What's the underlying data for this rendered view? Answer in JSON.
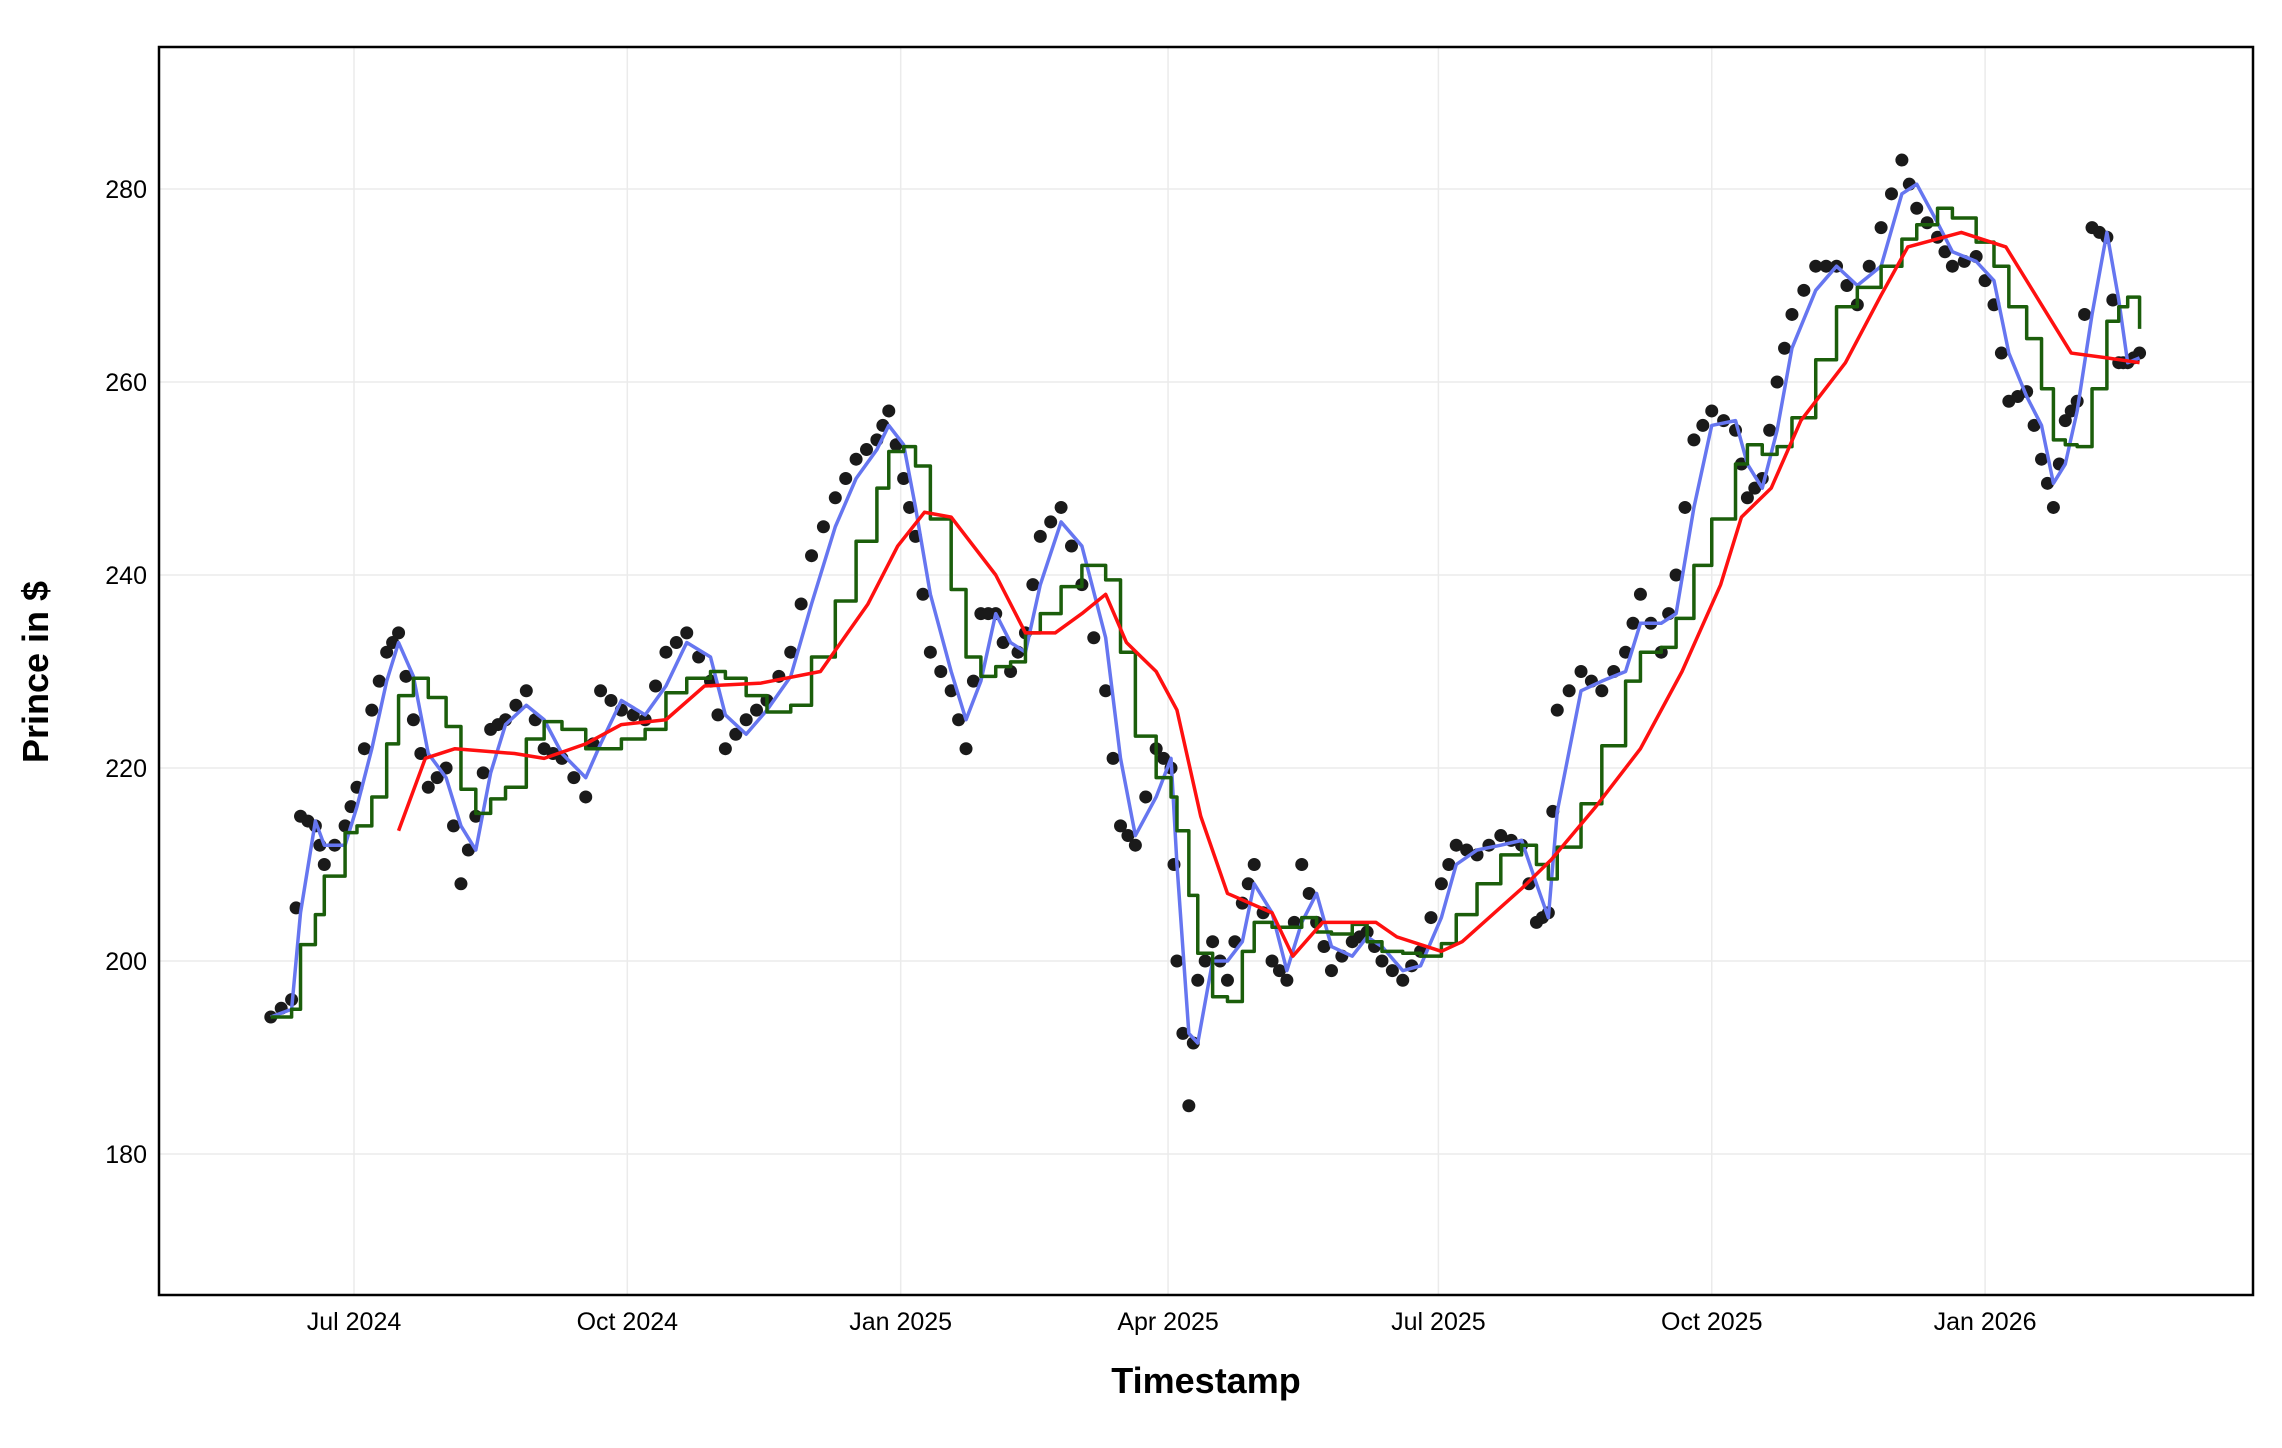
{
  "chart_data": {
    "type": "line",
    "title": "",
    "xlabel": "Timestamp",
    "ylabel": "Prince in $",
    "ylim": [
      165,
      293
    ],
    "xlim": [
      "2024-05-10",
      "2026-03-24"
    ],
    "grid": true,
    "legend": "none",
    "x_ticks": [
      {
        "date": "2024-07-01",
        "label": "Jul 2024"
      },
      {
        "date": "2024-10-01",
        "label": "Oct 2024"
      },
      {
        "date": "2025-01-01",
        "label": "Jan 2025"
      },
      {
        "date": "2025-04-01",
        "label": "Apr 2025"
      },
      {
        "date": "2025-07-01",
        "label": "Jul 2025"
      },
      {
        "date": "2025-10-01",
        "label": "Oct 2025"
      },
      {
        "date": "2026-01-01",
        "label": "Jan 2026"
      }
    ],
    "y_ticks": [
      180,
      200,
      220,
      240,
      260,
      280
    ],
    "colors": {
      "price": "#1a1a1a",
      "blue": "#6676f0",
      "green": "#1b5e0b",
      "red": "#ff1010",
      "grid": "#ebebeb"
    },
    "x": [
      "2024-06-03",
      "2024-06-10",
      "2024-06-13",
      "2024-06-18",
      "2024-06-21",
      "2024-06-28",
      "2024-07-02",
      "2024-07-07",
      "2024-07-12",
      "2024-07-16",
      "2024-07-21",
      "2024-07-26",
      "2024-08-01",
      "2024-08-06",
      "2024-08-11",
      "2024-08-16",
      "2024-08-21",
      "2024-08-28",
      "2024-09-03",
      "2024-09-09",
      "2024-09-17",
      "2024-09-22",
      "2024-09-29",
      "2024-10-07",
      "2024-10-14",
      "2024-10-21",
      "2024-10-29",
      "2024-11-03",
      "2024-11-10",
      "2024-11-17",
      "2024-11-25",
      "2024-12-02",
      "2024-12-10",
      "2024-12-17",
      "2024-12-24",
      "2024-12-28",
      "2025-01-02",
      "2025-01-06",
      "2025-01-11",
      "2025-01-18",
      "2025-01-23",
      "2025-01-28",
      "2025-02-02",
      "2025-02-07",
      "2025-02-12",
      "2025-02-17",
      "2025-02-24",
      "2025-03-03",
      "2025-03-11",
      "2025-03-16",
      "2025-03-21",
      "2025-03-28",
      "2025-04-02",
      "2025-04-04",
      "2025-04-08",
      "2025-04-11",
      "2025-04-16",
      "2025-04-21",
      "2025-04-26",
      "2025-04-30",
      "2025-05-06",
      "2025-05-11",
      "2025-05-16",
      "2025-05-21",
      "2025-05-26",
      "2025-06-02",
      "2025-06-07",
      "2025-06-12",
      "2025-06-19",
      "2025-06-25",
      "2025-07-02",
      "2025-07-07",
      "2025-07-14",
      "2025-07-22",
      "2025-07-29",
      "2025-08-03",
      "2025-08-07",
      "2025-08-10",
      "2025-08-18",
      "2025-08-25",
      "2025-09-02",
      "2025-09-07",
      "2025-09-14",
      "2025-09-19",
      "2025-09-25",
      "2025-10-01",
      "2025-10-09",
      "2025-10-13",
      "2025-10-18",
      "2025-10-23",
      "2025-10-28",
      "2025-11-05",
      "2025-11-12",
      "2025-11-19",
      "2025-11-27",
      "2025-12-04",
      "2025-12-09",
      "2025-12-16",
      "2025-12-21",
      "2025-12-29",
      "2026-01-04",
      "2026-01-09",
      "2026-01-15",
      "2026-01-20",
      "2026-01-24",
      "2026-01-28",
      "2026-02-01",
      "2026-02-06",
      "2026-02-11",
      "2026-02-15",
      "2026-02-18",
      "2026-02-22"
    ],
    "series": [
      {
        "key": "price",
        "style": "points",
        "values": [
          194.2,
          196,
          215,
          214,
          210,
          214,
          218,
          226,
          232,
          234,
          225,
          218,
          220,
          208,
          215,
          224,
          225,
          228,
          222,
          221,
          217,
          228,
          226,
          225,
          232,
          234,
          229,
          222,
          225,
          227,
          232,
          242,
          248,
          252,
          254,
          257,
          250,
          244,
          232,
          228,
          222,
          236,
          236,
          230,
          234,
          244,
          247,
          239,
          228,
          214,
          212,
          222,
          220,
          200,
          185,
          198,
          202,
          198,
          206,
          210,
          200,
          198,
          210,
          204,
          199,
          202,
          203,
          200,
          198,
          201,
          208,
          212,
          211,
          213,
          212,
          204,
          205,
          226,
          230,
          228,
          232,
          238,
          232,
          240,
          254,
          257,
          255,
          248,
          250,
          260,
          267,
          272,
          272,
          268,
          276,
          283,
          278,
          275,
          272,
          273,
          268,
          258,
          259,
          252,
          247,
          256,
          258,
          276,
          275,
          262,
          262,
          263
        ]
      },
      {
        "key": "blue",
        "style": "line",
        "values": [
          194.2,
          195,
          205,
          214.5,
          212,
          212,
          216,
          222,
          229,
          233,
          229.5,
          221.5,
          219,
          214,
          211.5,
          219.5,
          224.5,
          226.5,
          225,
          221.5,
          219,
          222.5,
          227,
          225.5,
          228.5,
          233,
          231.5,
          225.5,
          223.5,
          226,
          229.5,
          237,
          245,
          250,
          253,
          255.5,
          253.5,
          247,
          238,
          230,
          225,
          229,
          236,
          233,
          232,
          239,
          245.5,
          243,
          233.5,
          221,
          213,
          217,
          221,
          210,
          192.5,
          191.5,
          200,
          200,
          202,
          208,
          205,
          199,
          204,
          207,
          201.5,
          200.5,
          202.5,
          201.5,
          199,
          199.5,
          204.5,
          210,
          211.5,
          212,
          212.5,
          208,
          204.5,
          215.5,
          228,
          229,
          230,
          235,
          235,
          236,
          247,
          255.5,
          256,
          251.5,
          249,
          255,
          263.5,
          269.5,
          272,
          270,
          272,
          279.5,
          280.5,
          276.5,
          273.5,
          272.5,
          270.5,
          263,
          258.5,
          255.5,
          249.5,
          251.5,
          257,
          267,
          275.5,
          268.5,
          262,
          262.5
        ]
      },
      {
        "key": "green",
        "style": "step",
        "values": [
          194.2,
          195,
          201.7,
          204.8,
          208.8,
          213.3,
          214,
          217,
          222.5,
          227.5,
          229.3,
          227.3,
          224.3,
          217.8,
          215.3,
          216.8,
          218,
          223,
          224.8,
          224,
          222,
          222,
          223,
          224,
          227.8,
          229.3,
          230,
          229.3,
          227.5,
          225.8,
          226.5,
          231.5,
          237.3,
          243.5,
          249,
          252.8,
          253.3,
          251.3,
          245.8,
          238.5,
          231.5,
          229.5,
          230.5,
          231,
          234,
          236,
          238.8,
          241,
          239.5,
          232,
          223.3,
          219,
          217,
          213.5,
          206.8,
          200.8,
          196.3,
          195.8,
          201,
          204,
          203.5,
          203.5,
          204.5,
          203,
          202.8,
          203.8,
          202,
          201,
          200.8,
          200.5,
          201.8,
          204.8,
          208,
          211,
          212,
          210,
          208.5,
          211.8,
          216.3,
          222.3,
          229,
          232,
          232.5,
          235.5,
          241,
          245.8,
          251.5,
          253.5,
          252.5,
          253.3,
          256.3,
          262.3,
          267.8,
          269.8,
          272,
          274.8,
          276.3,
          278,
          277,
          274.5,
          272,
          267.8,
          264.5,
          259.3,
          254,
          253.5,
          253.3,
          259.3,
          266.3,
          267.8,
          268.8,
          265.5
        ]
      },
      {
        "key": "red",
        "style": "line",
        "x": [
          "2024-07-16",
          "2024-07-25",
          "2024-08-04",
          "2024-08-24",
          "2024-09-03",
          "2024-09-17",
          "2024-09-29",
          "2024-10-14",
          "2024-10-27",
          "2024-11-15",
          "2024-12-05",
          "2024-12-21",
          "2024-12-31",
          "2025-01-09",
          "2025-01-18",
          "2025-02-02",
          "2025-02-12",
          "2025-02-22",
          "2025-03-03",
          "2025-03-11",
          "2025-03-18",
          "2025-03-28",
          "2025-04-04",
          "2025-04-12",
          "2025-04-21",
          "2025-05-06",
          "2025-05-13",
          "2025-05-23",
          "2025-06-10",
          "2025-06-17",
          "2025-07-02",
          "2025-07-09",
          "2025-07-29",
          "2025-08-08",
          "2025-08-23",
          "2025-09-07",
          "2025-09-21",
          "2025-10-04",
          "2025-10-11",
          "2025-10-21",
          "2025-10-31",
          "2025-11-15",
          "2025-11-27",
          "2025-12-06",
          "2025-12-24",
          "2026-01-08",
          "2026-01-20",
          "2026-01-30",
          "2026-02-11",
          "2026-02-22"
        ],
        "values": [
          213.5,
          221,
          222,
          221.5,
          221,
          222.5,
          224.5,
          225,
          228.5,
          228.8,
          230,
          237,
          243,
          246.5,
          246,
          240,
          234,
          234,
          236,
          238,
          233,
          230,
          226,
          215,
          207,
          205,
          200.5,
          204,
          204,
          202.5,
          201,
          202,
          207.5,
          210.5,
          216,
          222,
          230,
          239,
          246,
          249,
          256,
          262,
          269,
          274,
          275.5,
          274,
          268,
          263,
          262.5,
          262
        ]
      }
    ]
  }
}
